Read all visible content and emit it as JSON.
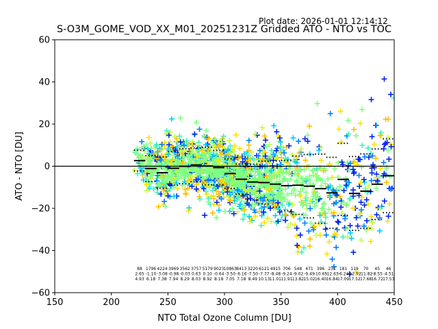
{
  "header": {
    "plot_date": "Plot date: 2026-01-01 12:14:12",
    "title": "S-O3M_GOME_VOD_XX_M01_20251231Z Gridded ATO - NTO vs TOC"
  },
  "chart_data": {
    "type": "scatter",
    "title": "S-O3M_GOME_VOD_XX_M01_20251231Z Gridded ATO - NTO vs TOC",
    "subtitle": "Plot date: 2026-01-01 12:14:12",
    "xlabel": "NTO Total Ozone Column [DU]",
    "ylabel": "ATO - NTO [DU]",
    "xlim": [
      150,
      450
    ],
    "ylim": [
      -60,
      60
    ],
    "xticks": [
      150,
      200,
      250,
      300,
      350,
      400,
      450
    ],
    "yticks": [
      -60,
      -40,
      -20,
      0,
      20,
      40,
      60
    ],
    "grid": false,
    "legend": "none",
    "marker": "+",
    "colormap": "jet (green-dominant density coloring)",
    "zero_line": 0,
    "scatter_envelope": {
      "description": "dense cloud of gridded points, colour-coded",
      "x_range": [
        220,
        450
      ],
      "colors": [
        "#0022ee",
        "#0080ff",
        "#00ccff",
        "#40f0c0",
        "#80ff80",
        "#c0ff40",
        "#ffe000",
        "#ffc000"
      ]
    },
    "bins": {
      "x_centers": [
        225,
        235,
        245,
        255,
        265,
        275,
        285,
        295,
        305,
        315,
        325,
        335,
        345,
        355,
        365,
        375,
        385,
        395,
        405,
        415,
        425,
        435,
        445
      ],
      "count": [
        88,
        1796,
        4224,
        3969,
        3562,
        3757,
        5179,
        9023,
        10863,
        8413,
        3220,
        6121,
        4915,
        706,
        548,
        471,
        396,
        231,
        181,
        119,
        70,
        45,
        46
      ],
      "mean": [
        2.65,
        -1.1,
        -3.08,
        -0.98,
        -0.03,
        0.63,
        0.1,
        -0.64,
        -3.5,
        -6.16,
        -7.5,
        -7.77,
        -8.48,
        -9.24,
        -9.02,
        -9.49,
        -10.65,
        -12.63,
        -6.24,
        -12.92,
        -11.82,
        -8.55,
        -4.51
      ],
      "std": [
        4.93,
        6.18,
        7.38,
        7.94,
        8.29,
        8.03,
        8.92,
        8.18,
        7.05,
        7.18,
        8.49,
        10.13,
        11.01,
        11.91,
        13.82,
        15.02,
        16.4,
        16.84,
        17.09,
        17.52,
        17.68,
        16.72,
        17.53
      ]
    }
  }
}
